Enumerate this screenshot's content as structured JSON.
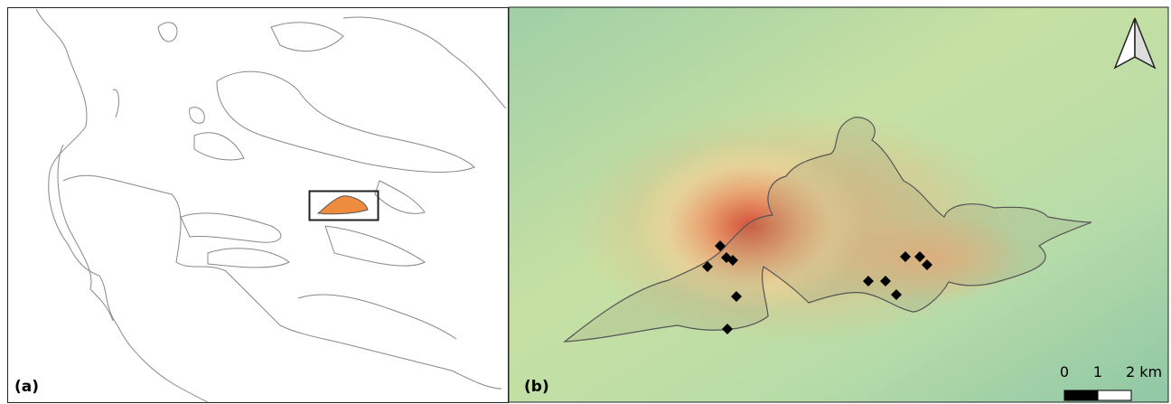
{
  "panels": [
    {
      "label": "(a)"
    },
    {
      "label": "(b)"
    }
  ],
  "scale_bar": {
    "labels": [
      "0",
      "1",
      "2 km"
    ]
  }
}
